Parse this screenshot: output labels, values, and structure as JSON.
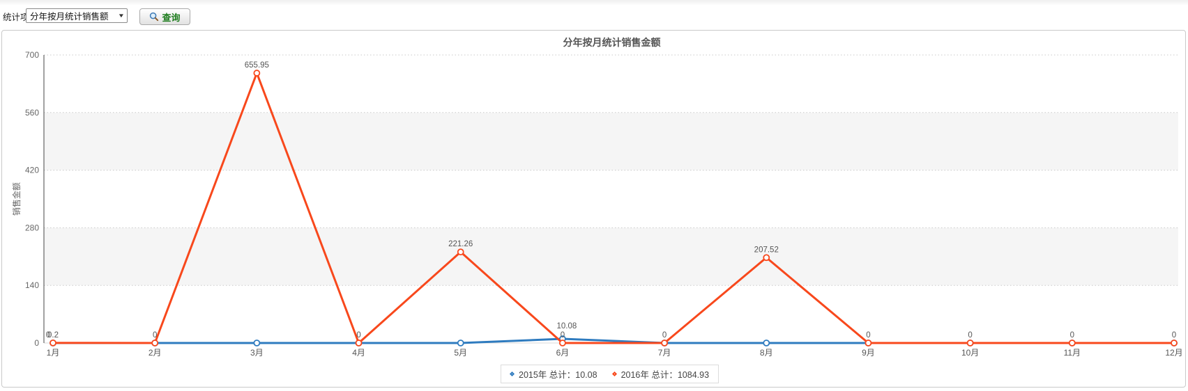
{
  "toolbar": {
    "label": "统计项目",
    "select_value": "分年按月统计销售额",
    "query_button": "查询"
  },
  "chart": {
    "title": "分年按月统计销售金额"
  },
  "colors": {
    "query_green": "#1f7d1f",
    "band_gray": "#f5f5f5",
    "grid": "#c9c9c9",
    "axis": "#444444",
    "tick_text": "#666666",
    "value_text": "#555555",
    "series_2015_blue": "#2e7bbf",
    "series_2016_red": "#f8481c"
  },
  "chart_data": {
    "type": "line",
    "title": "分年按月统计销售金额",
    "xlabel": "",
    "ylabel": "销售金额",
    "ylim": [
      0,
      700
    ],
    "yticks": [
      0,
      140,
      280,
      420,
      560,
      700
    ],
    "grid": "dotted-horizontal",
    "alternating_bands": true,
    "legend_position": "bottom-center",
    "categories": [
      "1月",
      "2月",
      "3月",
      "4月",
      "5月",
      "6月",
      "7月",
      "8月",
      "9月",
      "10月",
      "11月",
      "12月"
    ],
    "series": [
      {
        "name": "2015年",
        "color": "#2e7bbf",
        "total": 10.08,
        "values": [
          0,
          0,
          0,
          0,
          0,
          10.08,
          0,
          0,
          0,
          0,
          0,
          0
        ],
        "point_labels": [
          "0",
          "",
          "",
          "",
          "",
          "10.08",
          "",
          "",
          "",
          "",
          "",
          ""
        ]
      },
      {
        "name": "2016年",
        "color": "#f8481c",
        "total": 1084.93,
        "values": [
          0.2,
          0,
          655.95,
          0,
          221.26,
          0,
          0,
          207.52,
          0,
          0,
          0,
          0
        ],
        "point_labels": [
          "0.2",
          "0",
          "655.95",
          "0",
          "221.26",
          "0",
          "0",
          "207.52",
          "0",
          "0",
          "0",
          "0"
        ]
      }
    ],
    "legend": [
      {
        "series": "2015年",
        "label": "2015年 总计：10.08"
      },
      {
        "series": "2016年",
        "label": "2016年 总计：1084.93"
      }
    ]
  }
}
